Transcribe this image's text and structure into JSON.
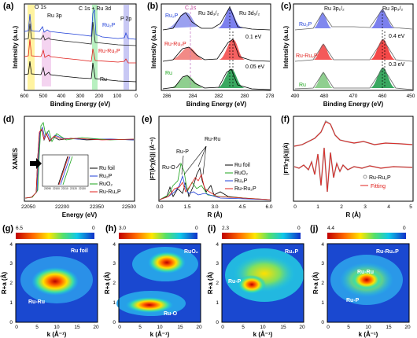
{
  "panels": {
    "a": {
      "label": "(a)",
      "xlabel": "Binding Energy (eV)",
      "ylabel": "Intensity (a.u.)",
      "xticks": [
        "600",
        "500",
        "400",
        "300",
        "200",
        "100",
        "0"
      ],
      "annotations": {
        "o1s": "O 1s",
        "c1s_ru3d": "C 1s + Ru 3d",
        "ru3p": "Ru 3p",
        "p2p": "P 2p"
      },
      "legend": {
        "ru2p": "Ru₂P",
        "ru_ru2p": "Ru-Ru₂P",
        "ru": "Ru"
      }
    },
    "b": {
      "label": "(b)",
      "xlabel": "Binding Energy (eV)",
      "ylabel": "Intensity (a.u.)",
      "xticks": [
        "286",
        "284",
        "282",
        "280",
        "278"
      ],
      "annotations": {
        "c1s": "C 1s",
        "ru3d32": "Ru 3d₃/₂",
        "ru3d52": "Ru 3d₅/₂",
        "shift1": "0.1 eV",
        "shift2": "0.05 eV"
      },
      "legend": {
        "ru2p": "Ru₂P",
        "ru_ru2p": "Ru-Ru₂P",
        "ru": "Ru"
      }
    },
    "c": {
      "label": "(c)",
      "xlabel": "Binding Energy (eV)",
      "ylabel": "Intensity (a.u.)",
      "xticks": [
        "490",
        "480",
        "470",
        "460",
        "450"
      ],
      "annotations": {
        "ru3p12": "Ru 3p₁/₂",
        "ru3p32": "Ru 3p₃/₂",
        "shift1": "0.4 eV",
        "shift2": "0.3 eV"
      },
      "legend": {
        "ru2p": "Ru₂P",
        "ru_ru2p": "Ru-Ru₂P",
        "ru": "Ru"
      }
    },
    "d": {
      "label": "(d)",
      "xlabel": "Energy (eV)",
      "ylabel": "XANES",
      "xticks": [
        "22050",
        "22200",
        "22350",
        "22500"
      ],
      "inset_xticks": [
        "22090",
        "22100",
        "22110",
        "22120",
        "22130"
      ],
      "legend": [
        "Ru foil",
        "Ru₂P",
        "RuO₂",
        "Ru-Ru₂P"
      ]
    },
    "e": {
      "label": "(e)",
      "xlabel": "R (Å)",
      "ylabel": "|FT(k³χ(k))| (Å⁻⁴)",
      "xticks": [
        "0.0",
        "1.5",
        "3.0",
        "4.5",
        "6.0"
      ],
      "annotations": {
        "ruru": "Ru-Ru",
        "rup": "Ru-P",
        "ruo": "Ru-O"
      },
      "legend": [
        "Ru foil",
        "RuO₂",
        "Ru₂P",
        "Ru-Ru₂P"
      ]
    },
    "f": {
      "label": "(f)",
      "xlabel": "R (Å)",
      "ylabel": "|FTk³χ(k)|(Å)",
      "xticks": [
        "0",
        "1",
        "2",
        "3",
        "4",
        "5"
      ],
      "legend": [
        "Ru-Ru₂P",
        "Fitting"
      ]
    },
    "g": {
      "label": "(g)",
      "cmax": "6.5",
      "cmin": "0",
      "sample": "Ru foil",
      "path": "Ru-Ru",
      "xlabel": "k (Å⁻¹)",
      "ylabel": "R+a (Å)",
      "xticks": [
        "0",
        "5",
        "10",
        "15",
        "20"
      ],
      "yticks": [
        "0",
        "1",
        "2",
        "3",
        "4"
      ]
    },
    "h": {
      "label": "(h)",
      "cmax": "3.0",
      "cmin": "0",
      "sample": "RuO₂",
      "path": "Ru-O",
      "xlabel": "k (Å⁻¹)",
      "ylabel": "R+a (Å)",
      "xticks": [
        "0",
        "5",
        "10",
        "15",
        "20"
      ],
      "yticks": [
        "0",
        "1",
        "2",
        "3",
        "4"
      ]
    },
    "i": {
      "label": "(i)",
      "cmax": "2.3",
      "cmin": "0",
      "sample": "Ru₂P",
      "path": "Ru-P",
      "xlabel": "k (Å⁻¹)",
      "ylabel": "R+a (Å)",
      "xticks": [
        "0",
        "5",
        "10",
        "15",
        "20"
      ],
      "yticks": [
        "0",
        "1",
        "2",
        "3",
        "4"
      ]
    },
    "j": {
      "label": "(j)",
      "cmax": "4.4",
      "cmin": "0",
      "sample": "Ru-Ru₂P",
      "path1": "Ru-Ru",
      "path2": "Ru-P",
      "xlabel": "k (Å⁻¹)",
      "ylabel": "R+a (Å)",
      "xticks": [
        "0",
        "5",
        "10",
        "15",
        "20"
      ],
      "yticks": [
        "0",
        "1",
        "2",
        "3",
        "4"
      ]
    }
  },
  "colors": {
    "ru2p": "#1f3fd8",
    "ru_ru2p": "#e0201c",
    "ru": "#000000",
    "ruo2": "#1ea51e",
    "gray": "#9a9a9a"
  }
}
